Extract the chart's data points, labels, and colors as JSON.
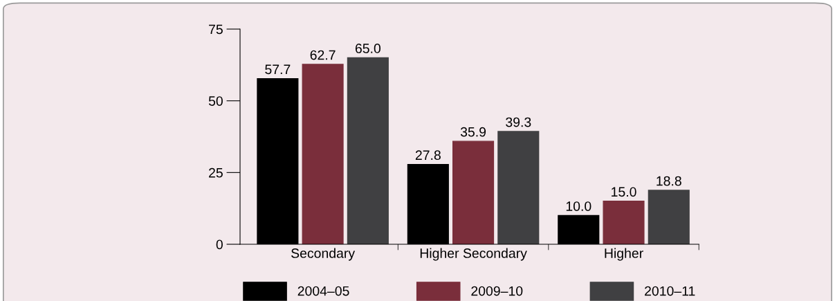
{
  "chart_data": {
    "type": "bar",
    "categories": [
      "Secondary",
      "Higher Secondary",
      "Higher"
    ],
    "series": [
      {
        "name": "2004–05",
        "color": "#000000",
        "values": [
          57.7,
          27.8,
          10.0
        ],
        "value_labels": [
          "57.7",
          "27.8",
          "10.0"
        ]
      },
      {
        "name": "2009–10",
        "color": "#7a2e3b",
        "values": [
          62.7,
          35.9,
          15.0
        ],
        "value_labels": [
          "62.7",
          "35.9",
          "15.0"
        ]
      },
      {
        "name": "2010–11",
        "color": "#404042",
        "values": [
          65.0,
          39.3,
          18.8
        ],
        "value_labels": [
          "65.0",
          "39.3",
          "18.8"
        ]
      }
    ],
    "ylim": [
      0,
      75
    ],
    "yticks": [
      0,
      25,
      50,
      75
    ],
    "grid": false,
    "legend": "bottom"
  }
}
